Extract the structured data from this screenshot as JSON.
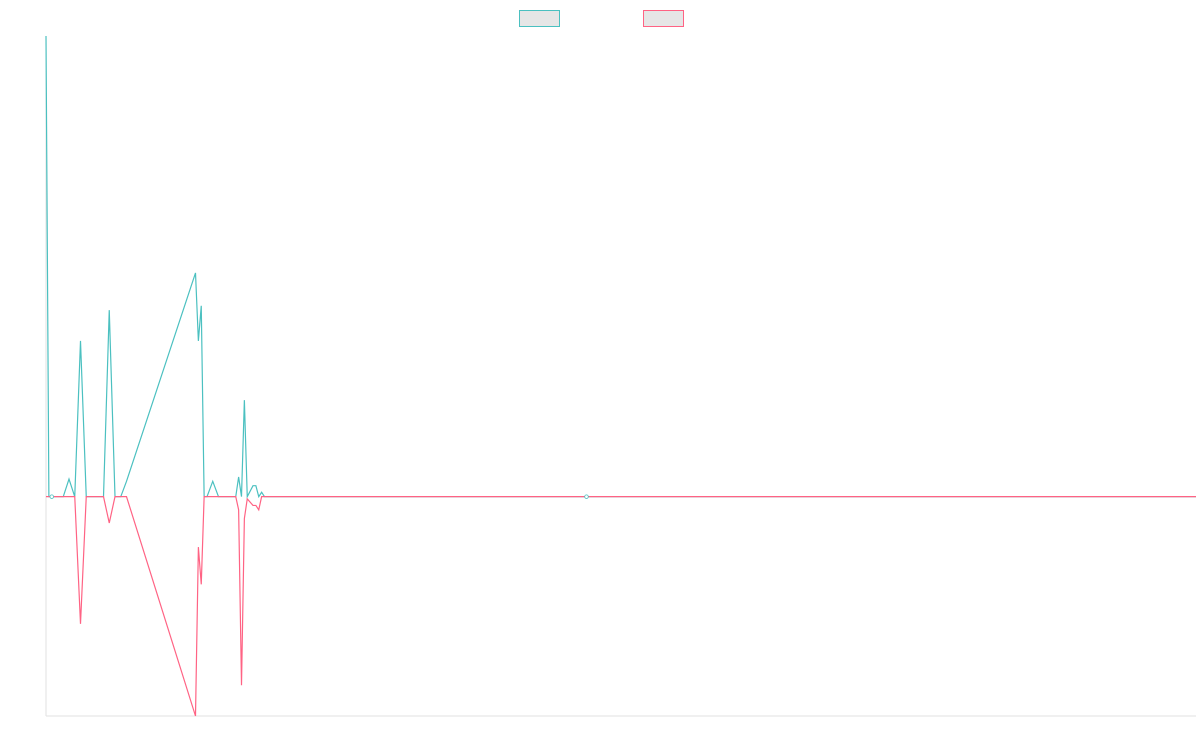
{
  "chart_data": {
    "type": "line",
    "title": "",
    "xlabel": "",
    "ylabel": "",
    "legend": {
      "placement": "top-center",
      "show_labels": false
    },
    "grid": false,
    "xlim": [
      0,
      200
    ],
    "ylim": [
      -100,
      210
    ],
    "x": [
      0,
      0.5,
      1,
      2,
      3,
      4,
      5,
      6,
      7,
      8,
      10,
      11,
      12,
      13,
      14,
      26,
      26.5,
      27,
      27.5,
      28,
      29,
      30,
      33,
      33.5,
      34,
      34.5,
      35,
      36,
      36.5,
      37,
      37.5,
      38,
      94,
      200
    ],
    "series": [
      {
        "name": "",
        "color": "#4bc0c0",
        "values": [
          210,
          0,
          0,
          0,
          0,
          8,
          0,
          71,
          0,
          0,
          0,
          85,
          0,
          0,
          7,
          102,
          71,
          87,
          0,
          0,
          7,
          0,
          0,
          9,
          0,
          44,
          0,
          5,
          5,
          0,
          2,
          0,
          0,
          0
        ]
      },
      {
        "name": "",
        "color": "#ff6384",
        "values": [
          0,
          0,
          0,
          0,
          0,
          0,
          0,
          -58,
          0,
          0,
          0,
          -12,
          0,
          0,
          0,
          -100,
          -23,
          -40,
          0,
          0,
          0,
          0,
          0,
          -6,
          -86,
          -10,
          -1,
          -4,
          -4,
          -6,
          0,
          0,
          0,
          0
        ]
      }
    ]
  }
}
